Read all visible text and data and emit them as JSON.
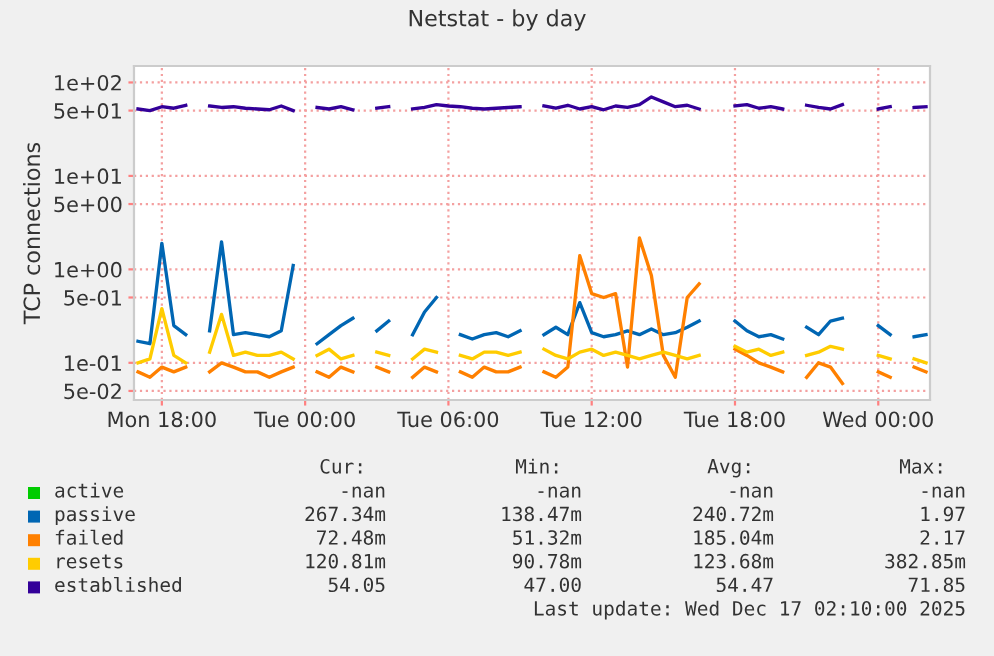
{
  "chart_data": {
    "type": "line",
    "title": "Netstat - by day",
    "ylabel": "TCP connections",
    "x": [
      "2025-12-15T17:00",
      "2025-12-15T17:30",
      "2025-12-15T18:00",
      "2025-12-15T18:30",
      "2025-12-15T19:00",
      "2025-12-15T19:30",
      "2025-12-15T20:00",
      "2025-12-15T20:30",
      "2025-12-15T21:00",
      "2025-12-15T21:30",
      "2025-12-15T22:00",
      "2025-12-15T22:30",
      "2025-12-15T23:00",
      "2025-12-15T23:30",
      "2025-12-16T00:00",
      "2025-12-16T00:30",
      "2025-12-16T01:00",
      "2025-12-16T01:30",
      "2025-12-16T02:00",
      "2025-12-16T02:30",
      "2025-12-16T03:00",
      "2025-12-16T03:30",
      "2025-12-16T04:00",
      "2025-12-16T04:30",
      "2025-12-16T05:00",
      "2025-12-16T05:30",
      "2025-12-16T06:00",
      "2025-12-16T06:30",
      "2025-12-16T07:00",
      "2025-12-16T07:30",
      "2025-12-16T08:00",
      "2025-12-16T08:30",
      "2025-12-16T09:00",
      "2025-12-16T09:30",
      "2025-12-16T10:00",
      "2025-12-16T10:30",
      "2025-12-16T11:00",
      "2025-12-16T11:30",
      "2025-12-16T12:00",
      "2025-12-16T12:30",
      "2025-12-16T13:00",
      "2025-12-16T13:30",
      "2025-12-16T14:00",
      "2025-12-16T14:30",
      "2025-12-16T15:00",
      "2025-12-16T15:30",
      "2025-12-16T16:00",
      "2025-12-16T16:30",
      "2025-12-16T17:00",
      "2025-12-16T17:30",
      "2025-12-16T18:00",
      "2025-12-16T18:30",
      "2025-12-16T19:00",
      "2025-12-16T19:30",
      "2025-12-16T20:00",
      "2025-12-16T20:30",
      "2025-12-16T21:00",
      "2025-12-16T21:30",
      "2025-12-16T22:00",
      "2025-12-16T22:30",
      "2025-12-16T23:00",
      "2025-12-16T23:30",
      "2025-12-17T00:00",
      "2025-12-17T00:30",
      "2025-12-17T01:00",
      "2025-12-17T01:30",
      "2025-12-17T02:00"
    ],
    "series": [
      {
        "name": "active",
        "color": "#00cc00",
        "values": [
          null,
          null,
          null,
          null,
          null,
          null,
          null,
          null,
          null,
          null,
          null,
          null,
          null,
          null,
          null,
          null,
          null,
          null,
          null,
          null,
          null,
          null,
          null,
          null,
          null,
          null,
          null,
          null,
          null,
          null,
          null,
          null,
          null,
          null,
          null,
          null,
          null,
          null,
          null,
          null,
          null,
          null,
          null,
          null,
          null,
          null,
          null,
          null,
          null,
          null,
          null,
          null,
          null,
          null,
          null,
          null,
          null,
          null,
          null,
          null,
          null,
          null,
          null,
          null,
          null,
          null,
          null
        ]
      },
      {
        "name": "passive",
        "color": "#0066b3",
        "values": [
          0.17,
          0.16,
          1.9,
          0.25,
          0.2,
          null,
          0.22,
          1.97,
          0.2,
          0.21,
          0.2,
          0.19,
          0.22,
          1.1,
          null,
          0.16,
          0.2,
          0.25,
          0.3,
          null,
          0.22,
          0.28,
          null,
          0.2,
          0.35,
          0.5,
          null,
          0.2,
          0.18,
          0.2,
          0.21,
          0.19,
          0.22,
          null,
          0.2,
          0.24,
          0.2,
          0.44,
          0.21,
          0.19,
          0.2,
          0.22,
          0.2,
          0.23,
          0.2,
          0.21,
          0.24,
          0.28,
          null,
          null,
          0.28,
          0.22,
          0.19,
          0.2,
          0.18,
          null,
          0.24,
          0.2,
          0.28,
          0.3,
          null,
          null,
          0.25,
          0.2,
          null,
          0.19,
          0.2
        ]
      },
      {
        "name": "failed",
        "color": "#ff8000",
        "values": [
          0.08,
          0.07,
          0.09,
          0.08,
          0.09,
          null,
          0.08,
          0.1,
          0.09,
          0.08,
          0.08,
          0.07,
          0.08,
          0.09,
          null,
          0.08,
          0.07,
          0.09,
          0.08,
          null,
          0.09,
          0.08,
          null,
          0.07,
          0.09,
          0.08,
          null,
          0.08,
          0.07,
          0.09,
          0.08,
          0.08,
          0.09,
          null,
          0.08,
          0.07,
          0.09,
          1.4,
          0.55,
          0.5,
          0.55,
          0.09,
          2.17,
          0.86,
          0.12,
          0.07,
          0.5,
          0.7,
          null,
          null,
          0.14,
          0.12,
          0.1,
          0.09,
          0.08,
          null,
          0.07,
          0.1,
          0.09,
          0.06,
          null,
          null,
          0.08,
          0.07,
          null,
          0.09,
          0.08
        ]
      },
      {
        "name": "resets",
        "color": "#ffcc00",
        "values": [
          0.1,
          0.11,
          0.38,
          0.12,
          0.1,
          null,
          0.13,
          0.33,
          0.12,
          0.13,
          0.12,
          0.12,
          0.13,
          0.11,
          null,
          0.12,
          0.14,
          0.11,
          0.12,
          null,
          0.13,
          0.12,
          null,
          0.11,
          0.14,
          0.13,
          null,
          0.12,
          0.11,
          0.13,
          0.13,
          0.12,
          0.13,
          null,
          0.14,
          0.12,
          0.11,
          0.13,
          0.14,
          0.12,
          0.13,
          0.12,
          0.11,
          0.12,
          0.13,
          0.12,
          0.11,
          0.12,
          null,
          null,
          0.15,
          0.13,
          0.14,
          0.12,
          0.13,
          null,
          0.12,
          0.13,
          0.15,
          0.14,
          null,
          null,
          0.12,
          0.11,
          null,
          0.11,
          0.1
        ]
      },
      {
        "name": "established",
        "color": "#330099",
        "values": [
          52,
          50,
          55,
          53,
          57,
          null,
          56,
          54,
          55,
          53,
          52,
          51,
          56,
          50,
          null,
          54,
          52,
          55,
          51,
          null,
          53,
          55,
          null,
          52,
          54,
          58,
          56,
          55,
          53,
          52,
          53,
          54,
          55,
          null,
          56,
          53,
          57,
          52,
          55,
          51,
          56,
          54,
          58,
          70,
          62,
          55,
          57,
          52,
          null,
          null,
          56,
          58,
          53,
          55,
          52,
          null,
          57,
          54,
          52,
          58,
          null,
          null,
          52,
          55,
          null,
          54,
          55
        ]
      }
    ],
    "log": "y",
    "ylim": [
      0.04,
      150
    ],
    "yticks": [
      {
        "value": 100,
        "label": "1e+02"
      },
      {
        "value": 50,
        "label": "5e+01"
      },
      {
        "value": 10,
        "label": "1e+01"
      },
      {
        "value": 5,
        "label": "5e+00"
      },
      {
        "value": 1,
        "label": "1e+00"
      },
      {
        "value": 0.5,
        "label": "5e-01"
      },
      {
        "value": 0.1,
        "label": "1e-01"
      },
      {
        "value": 0.05,
        "label": "5e-02"
      }
    ],
    "xlim": [
      "2025-12-15T16:50",
      "2025-12-17T02:10"
    ],
    "xticks": [
      {
        "value": "2025-12-15T18:00",
        "label": "Mon 18:00"
      },
      {
        "value": "2025-12-16T00:00",
        "label": "Tue 00:00"
      },
      {
        "value": "2025-12-16T06:00",
        "label": "Tue 06:00"
      },
      {
        "value": "2025-12-16T12:00",
        "label": "Tue 12:00"
      },
      {
        "value": "2025-12-16T18:00",
        "label": "Tue 18:00"
      },
      {
        "value": "2025-12-17T00:00",
        "label": "Wed 00:00"
      }
    ],
    "grid": true,
    "legend": "bottom",
    "marker": "none",
    "line_style": "solid",
    "annotations": [
      "Cur:",
      "Min:",
      "Avg:",
      "Max:",
      "-nan",
      "-nan",
      "-nan",
      "-nan",
      "267.34m",
      "138.47m",
      "240.72m",
      "1.97",
      "72.48m",
      "51.32m",
      "185.04m",
      "2.17",
      "120.81m",
      "90.78m",
      "123.68m",
      "382.85m",
      "54.05",
      "47.00",
      "54.47",
      "71.85",
      "Last update: Wed Dec 17 02:10:00 2025"
    ]
  }
}
